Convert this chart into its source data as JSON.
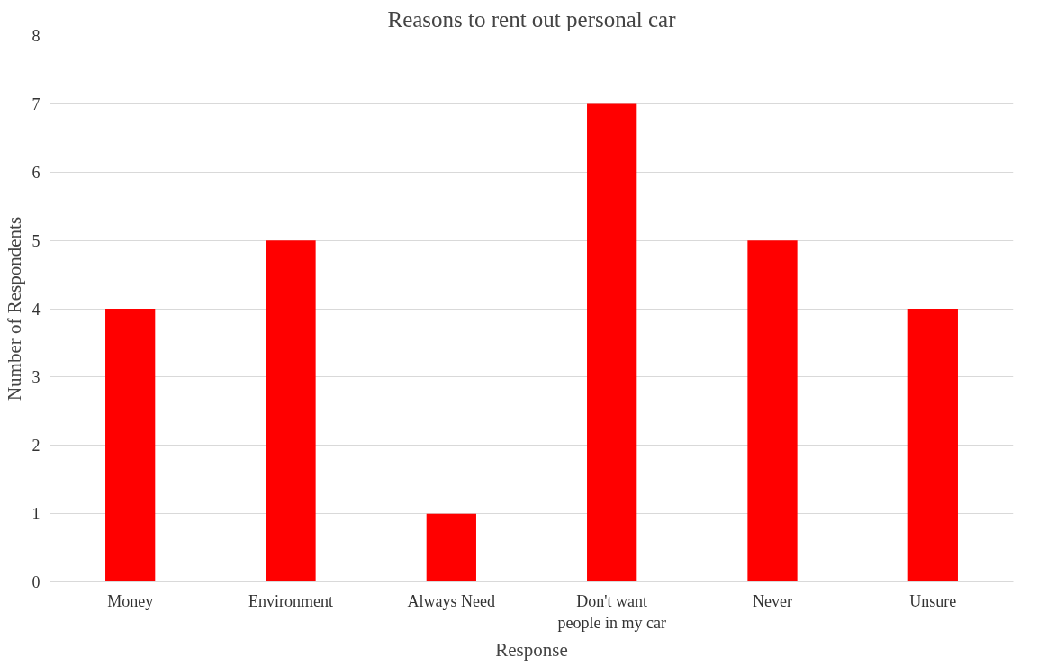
{
  "chart_data": {
    "type": "bar",
    "title": "Reasons to rent out personal car",
    "xlabel": "Response",
    "ylabel": "Number of Respondents",
    "categories": [
      "Money",
      "Environment",
      "Always Need",
      "Don't want people in my car",
      "Never",
      "Unsure"
    ],
    "values": [
      4,
      5,
      1,
      7,
      5,
      4
    ],
    "color": "#ff0000",
    "ylim": [
      0,
      8
    ],
    "yticks": [
      0,
      1,
      2,
      3,
      4,
      5,
      6,
      7,
      8
    ],
    "grid": "y"
  }
}
